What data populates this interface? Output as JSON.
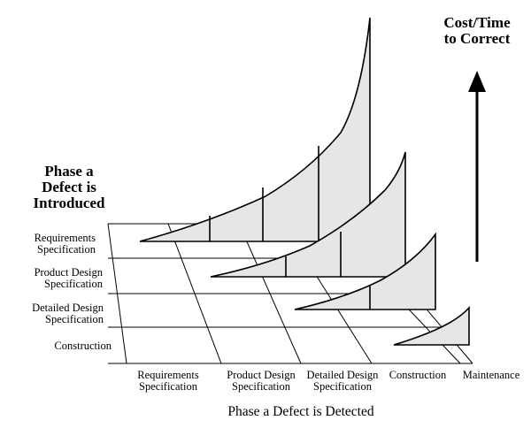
{
  "diagram": {
    "y_axis_title": [
      "Phase a",
      "Defect is",
      "Introduced"
    ],
    "cost_label": [
      "Cost/Time",
      "to Correct"
    ],
    "x_axis_title": "Phase a Defect is Detected",
    "rows": [
      [
        "Requirements",
        "Specification"
      ],
      [
        "Product Design",
        "Specification"
      ],
      [
        "Detailed Design",
        "Specification"
      ],
      [
        "Construction"
      ]
    ],
    "columns": [
      [
        "Requirements",
        "Specification"
      ],
      [
        "Product Design",
        "Specification"
      ],
      [
        "Detailed Design",
        "Specification"
      ],
      [
        "Construction"
      ],
      [
        "Maintenance"
      ]
    ],
    "fill_color": "#e6e6e6",
    "line_color": "#000000",
    "arrow_icon": "up-arrow-icon"
  }
}
